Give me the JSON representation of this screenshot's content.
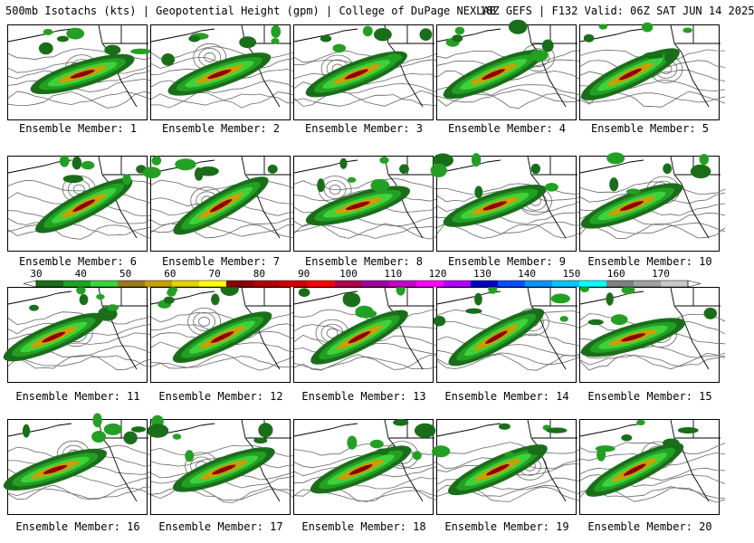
{
  "header": {
    "left_title": "500mb Isotachs (kts) | Geopotential Height (gpm) | College of DuPage NEXLAB",
    "right_title": "18Z GEFS | F132 Valid: 06Z SAT JUN 14 2025"
  },
  "colorbar": {
    "labels": [
      "30",
      "40",
      "50",
      "60",
      "70",
      "80",
      "90",
      "100",
      "110",
      "120",
      "130",
      "140",
      "150",
      "160",
      "170"
    ],
    "colors": [
      "#1a6e1a",
      "#23a023",
      "#3cd23c",
      "#9a7a1e",
      "#c8a000",
      "#e6d200",
      "#ffff00",
      "#8b0000",
      "#b40000",
      "#d20000",
      "#ff0000",
      "#b40050",
      "#a000a0",
      "#c800c8",
      "#ff00ff",
      "#b400ff",
      "#0000c8",
      "#0050ff",
      "#0096ff",
      "#00c8ff",
      "#00ffff",
      "#808080",
      "#a0a0a0",
      "#c8c8c8"
    ]
  },
  "panels": [
    {
      "caption": "Ensemble Member: 1"
    },
    {
      "caption": "Ensemble Member: 2"
    },
    {
      "caption": "Ensemble Member: 3"
    },
    {
      "caption": "Ensemble Member: 4"
    },
    {
      "caption": "Ensemble Member: 5"
    },
    {
      "caption": "Ensemble Member: 6"
    },
    {
      "caption": "Ensemble Member: 7"
    },
    {
      "caption": "Ensemble Member: 8"
    },
    {
      "caption": "Ensemble Member: 9"
    },
    {
      "caption": "Ensemble Member: 10"
    },
    {
      "caption": "Ensemble Member: 11"
    },
    {
      "caption": "Ensemble Member: 12"
    },
    {
      "caption": "Ensemble Member: 13"
    },
    {
      "caption": "Ensemble Member: 14"
    },
    {
      "caption": "Ensemble Member: 15"
    },
    {
      "caption": "Ensemble Member: 16"
    },
    {
      "caption": "Ensemble Member: 17"
    },
    {
      "caption": "Ensemble Member: 18"
    },
    {
      "caption": "Ensemble Member: 19"
    },
    {
      "caption": "Ensemble Member: 20"
    }
  ]
}
